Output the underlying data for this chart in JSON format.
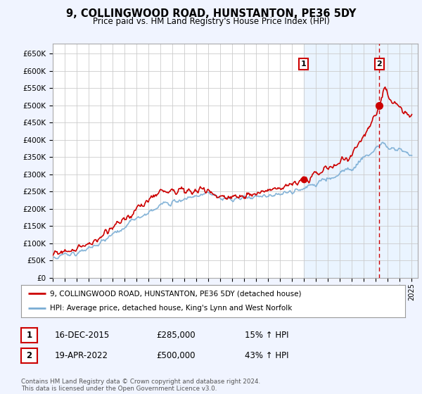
{
  "title": "9, COLLINGWOOD ROAD, HUNSTANTON, PE36 5DY",
  "subtitle": "Price paid vs. HM Land Registry's House Price Index (HPI)",
  "ylim": [
    0,
    680000
  ],
  "yticks": [
    0,
    50000,
    100000,
    150000,
    200000,
    250000,
    300000,
    350000,
    400000,
    450000,
    500000,
    550000,
    600000,
    650000
  ],
  "ytick_labels": [
    "£0",
    "£50K",
    "£100K",
    "£150K",
    "£200K",
    "£250K",
    "£300K",
    "£350K",
    "£400K",
    "£450K",
    "£500K",
    "£550K",
    "£600K",
    "£650K"
  ],
  "xlim_start": 1995.0,
  "xlim_end": 2025.5,
  "property_color": "#cc0000",
  "hpi_color": "#7aadd4",
  "vline_color": "#cc0000",
  "sale1_year": 2015.96,
  "sale1_price": 285000,
  "sale2_year": 2022.29,
  "sale2_price": 500000,
  "shade_start": 2015.96,
  "legend_property": "9, COLLINGWOOD ROAD, HUNSTANTON, PE36 5DY (detached house)",
  "legend_hpi": "HPI: Average price, detached house, King's Lynn and West Norfolk",
  "annotation1_label": "1",
  "annotation2_label": "2",
  "table_row1": [
    "1",
    "16-DEC-2015",
    "£285,000",
    "15% ↑ HPI"
  ],
  "table_row2": [
    "2",
    "19-APR-2022",
    "£500,000",
    "43% ↑ HPI"
  ],
  "footer": "Contains HM Land Registry data © Crown copyright and database right 2024.\nThis data is licensed under the Open Government Licence v3.0.",
  "background_color": "#f0f4ff",
  "plot_bg_color": "#ffffff",
  "grid_color": "#cccccc",
  "shade_color": "#ddeeff"
}
